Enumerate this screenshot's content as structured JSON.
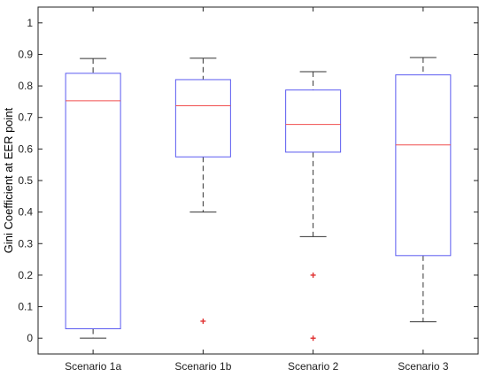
{
  "chart_data": {
    "type": "box",
    "ylabel": "Gini Coefficient at EER point",
    "xlabel": "",
    "title": "",
    "ylim": [
      -0.05,
      1.05
    ],
    "yticks": [
      0,
      0.1,
      0.2,
      0.3,
      0.4,
      0.5,
      0.6,
      0.7,
      0.8,
      0.9,
      1
    ],
    "ytick_labels": [
      "0",
      "0.1",
      "0.2",
      "0.3",
      "0.4",
      "0.5",
      "0.6",
      "0.7",
      "0.8",
      "0.9",
      "1"
    ],
    "categories": [
      "Scenario 1a",
      "Scenario 1b",
      "Scenario 2",
      "Scenario 3"
    ],
    "boxes": [
      {
        "min": 0.0,
        "q1": 0.03,
        "median": 0.753,
        "q3": 0.84,
        "max": 0.887,
        "outliers": []
      },
      {
        "min": 0.4,
        "q1": 0.575,
        "median": 0.737,
        "q3": 0.82,
        "max": 0.888,
        "outliers": [
          0.054
        ]
      },
      {
        "min": 0.322,
        "q1": 0.59,
        "median": 0.678,
        "q3": 0.787,
        "max": 0.845,
        "outliers": [
          0.2,
          0.0
        ]
      },
      {
        "min": 0.052,
        "q1": 0.262,
        "median": 0.613,
        "q3": 0.835,
        "max": 0.89,
        "outliers": []
      }
    ],
    "grid": false,
    "colors": {
      "box": "#5b5bf0",
      "median": "#f04f4f",
      "whisker": "#333333",
      "outlier": "#e03030",
      "axis": "#222222"
    }
  }
}
